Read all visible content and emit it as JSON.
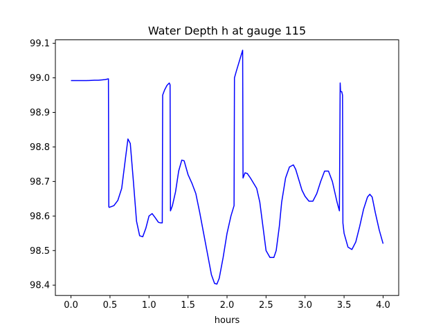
{
  "chart_data": {
    "type": "line",
    "title": "Water Depth h at gauge 115",
    "xlabel": "hours",
    "ylabel": "",
    "xlim": [
      -0.2,
      4.2
    ],
    "ylim": [
      98.37,
      99.11
    ],
    "xticks": [
      0.0,
      0.5,
      1.0,
      1.5,
      2.0,
      2.5,
      3.0,
      3.5,
      4.0
    ],
    "xtick_labels": [
      "0.0",
      "0.5",
      "1.0",
      "1.5",
      "2.0",
      "2.5",
      "3.0",
      "3.5",
      "4.0"
    ],
    "yticks": [
      98.4,
      98.5,
      98.6,
      98.7,
      98.8,
      98.9,
      99.0,
      99.1
    ],
    "ytick_labels": [
      "98.4",
      "98.5",
      "98.6",
      "98.7",
      "98.8",
      "98.9",
      "99.0",
      "99.1"
    ],
    "grid": false,
    "series": [
      {
        "color": "#0000ff",
        "x": [
          0.0,
          0.1,
          0.2,
          0.3,
          0.35,
          0.4,
          0.44,
          0.48,
          0.485,
          0.49,
          0.55,
          0.6,
          0.65,
          0.7,
          0.73,
          0.76,
          0.8,
          0.84,
          0.88,
          0.92,
          0.96,
          1.0,
          1.04,
          1.08,
          1.12,
          1.15,
          1.17,
          1.175,
          1.2,
          1.23,
          1.26,
          1.27,
          1.275,
          1.3,
          1.34,
          1.38,
          1.42,
          1.45,
          1.5,
          1.55,
          1.6,
          1.65,
          1.7,
          1.75,
          1.8,
          1.84,
          1.87,
          1.9,
          1.95,
          2.0,
          2.05,
          2.09,
          2.095,
          2.12,
          2.16,
          2.2,
          2.205,
          2.23,
          2.26,
          2.3,
          2.34,
          2.38,
          2.42,
          2.46,
          2.5,
          2.55,
          2.6,
          2.63,
          2.67,
          2.7,
          2.75,
          2.8,
          2.85,
          2.88,
          2.92,
          2.96,
          3.0,
          3.05,
          3.1,
          3.15,
          3.2,
          3.25,
          3.3,
          3.35,
          3.38,
          3.41,
          3.44,
          3.45,
          3.455,
          3.47,
          3.48,
          3.485,
          3.5,
          3.55,
          3.6,
          3.65,
          3.7,
          3.75,
          3.8,
          3.83,
          3.86,
          3.9,
          3.95,
          4.0
        ],
        "y": [
          98.992,
          98.992,
          98.992,
          98.993,
          98.993,
          98.994,
          98.995,
          98.997,
          98.627,
          98.625,
          98.63,
          98.645,
          98.68,
          98.77,
          98.823,
          98.81,
          98.7,
          98.585,
          98.543,
          98.54,
          98.565,
          98.6,
          98.607,
          98.595,
          98.582,
          98.58,
          98.58,
          98.95,
          98.965,
          98.978,
          98.985,
          98.98,
          98.615,
          98.63,
          98.67,
          98.73,
          98.762,
          98.76,
          98.72,
          98.695,
          98.665,
          98.61,
          98.55,
          98.49,
          98.43,
          98.405,
          98.403,
          98.42,
          98.48,
          98.55,
          98.6,
          98.63,
          99.0,
          99.02,
          99.05,
          99.08,
          98.71,
          98.725,
          98.723,
          98.71,
          98.695,
          98.68,
          98.64,
          98.57,
          98.5,
          98.48,
          98.48,
          98.5,
          98.57,
          98.64,
          98.71,
          98.742,
          98.748,
          98.735,
          98.705,
          98.675,
          98.657,
          98.643,
          98.643,
          98.665,
          98.7,
          98.73,
          98.73,
          98.7,
          98.67,
          98.64,
          98.615,
          98.985,
          98.96,
          98.96,
          98.95,
          98.58,
          98.55,
          98.51,
          98.503,
          98.525,
          98.57,
          98.62,
          98.655,
          98.663,
          98.655,
          98.61,
          98.56,
          98.52
        ]
      }
    ]
  }
}
